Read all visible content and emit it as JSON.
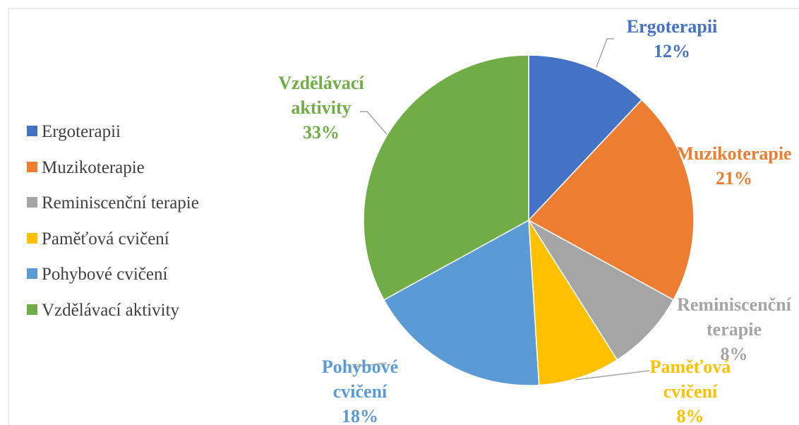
{
  "chart_data": {
    "type": "pie",
    "categories": [
      "Ergoterapii",
      "Muzikoterapie",
      "Reminiscenční terapie",
      "Paměťová cvičení",
      "Pohybové cvičení",
      "Vzdělávací aktivity"
    ],
    "values": [
      12,
      21,
      8,
      8,
      18,
      33
    ],
    "value_labels": [
      "12%",
      "21%",
      "8%",
      "8%",
      "18%",
      "33%"
    ],
    "colors": [
      "#4472c4",
      "#ed7d31",
      "#a5a5a5",
      "#ffc000",
      "#5b9bd5",
      "#70ad47"
    ],
    "legend": "left"
  }
}
